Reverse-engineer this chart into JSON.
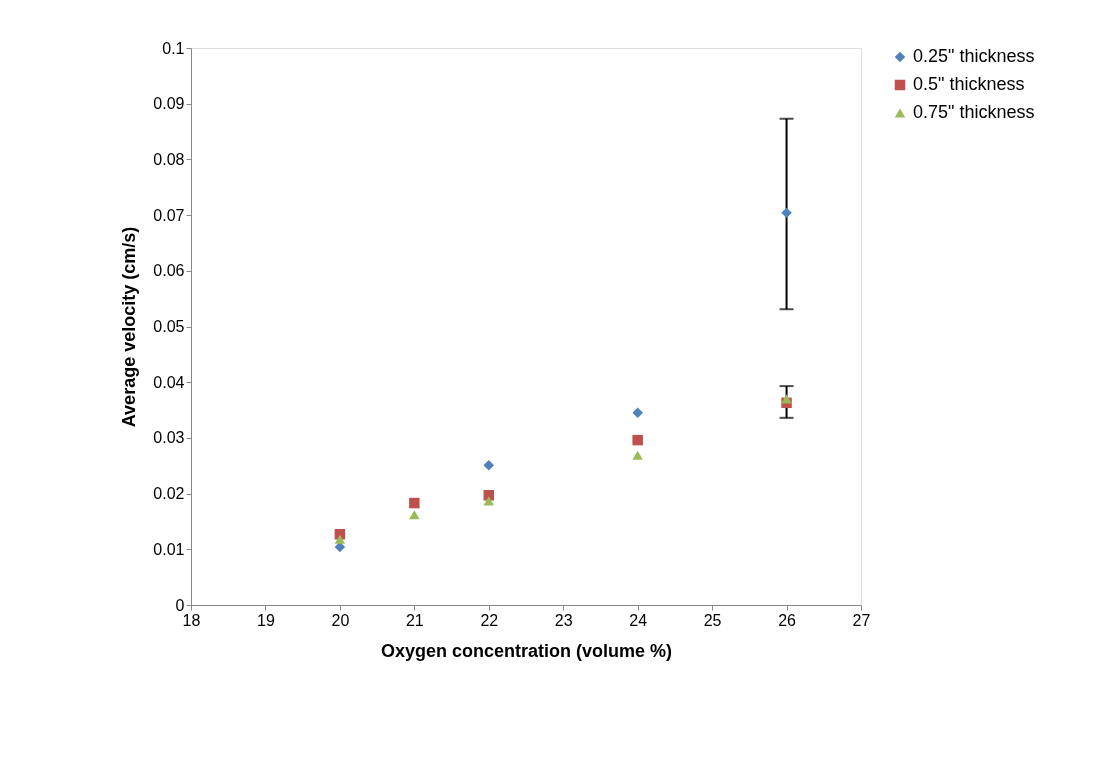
{
  "chart_data": {
    "type": "scatter",
    "xlabel": "Oxygen concentration (volume %)",
    "ylabel": "Average velocity (cm/s)",
    "x": [
      20,
      21,
      22,
      24,
      26
    ],
    "series": [
      {
        "name": "0.25\" thickness",
        "color": "#4f81bd",
        "marker": "diamond",
        "values": [
          0.0104,
          null,
          0.0251,
          0.0345,
          0.0704
        ],
        "errors": [
          null,
          null,
          null,
          null,
          [
            0.0531,
            0.0873
          ]
        ]
      },
      {
        "name": "0.5\" thickness",
        "color": "#c0504d",
        "marker": "square",
        "values": [
          0.0127,
          0.0183,
          0.0197,
          0.0296,
          0.0363
        ]
      },
      {
        "name": "0.75\" thickness",
        "color": "#9bbb59",
        "marker": "triangle",
        "values": [
          0.0118,
          0.0162,
          0.0187,
          0.0269,
          0.037
        ],
        "errors": [
          null,
          null,
          null,
          null,
          [
            0.0336,
            0.0393
          ]
        ]
      }
    ],
    "xlim": [
      18,
      27
    ],
    "xticks": [
      18,
      19,
      20,
      21,
      22,
      23,
      24,
      25,
      26,
      27
    ],
    "ylim": [
      0,
      0.1
    ],
    "yticks": [
      0,
      0.01,
      0.02,
      0.03,
      0.04,
      0.05,
      0.06,
      0.07,
      0.08,
      0.09,
      0.1
    ],
    "grid": false,
    "legend": "top right"
  }
}
